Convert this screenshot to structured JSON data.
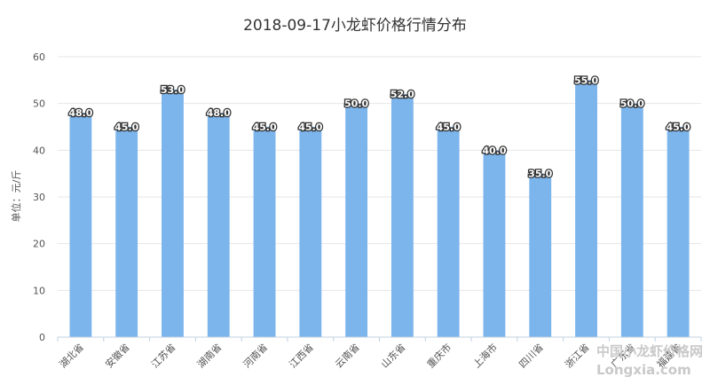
{
  "chart_data": {
    "type": "bar",
    "title": "2018-09-17小龙虾价格行情分布",
    "ylabel": "单位：元/斤",
    "xlabel": "",
    "categories": [
      "湖北省",
      "安徽省",
      "江苏省",
      "湖南省",
      "河南省",
      "江西省",
      "云南省",
      "山东省",
      "重庆市",
      "上海市",
      "四川省",
      "浙江省",
      "广东省",
      "福建省"
    ],
    "values": [
      48.0,
      45.0,
      53.0,
      48.0,
      45.0,
      45.0,
      50.0,
      52.0,
      45.0,
      40.0,
      35.0,
      55.0,
      50.0,
      45.0
    ],
    "data_labels": [
      "48.0",
      "45.0",
      "53.0",
      "48.0",
      "45.0",
      "45.0",
      "50.0",
      "52.0",
      "45.0",
      "40.0",
      "35.0",
      "55.0",
      "50.0",
      "45.0"
    ],
    "ylim": [
      0,
      60
    ],
    "yticks": [
      "0",
      "10",
      "20",
      "30",
      "40",
      "50",
      "60"
    ],
    "grid": true,
    "bar_color": "#7cb5ec"
  },
  "watermark": {
    "line1": "中国小龙虾价格网",
    "line2": "Longxia.com"
  }
}
